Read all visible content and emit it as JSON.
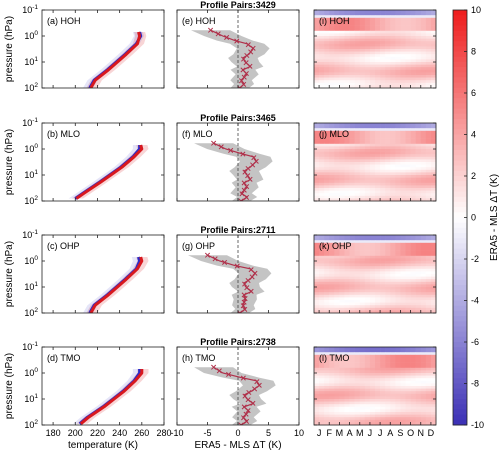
{
  "colors": {
    "era5": "#d8181e",
    "mls": "#2b2bc8",
    "spread": "#b0b0b0",
    "marker": "#b0304a",
    "cbar_low": "#3b2fb5",
    "cbar_mid": "#ffffff",
    "cbar_high": "#ee1b1b"
  },
  "pair_titles": [
    "Profile Pairs:3429",
    "Profile Pairs:3465",
    "Profile Pairs:2711",
    "Profile Pairs:2738"
  ],
  "chart_data": [
    {
      "type": "line",
      "xlabel": "temperature (K)",
      "ylabel": "pressure (hPa)",
      "xlim": [
        170,
        280
      ],
      "ylim": [
        0.1,
        100
      ],
      "y_scale": "log",
      "y_reversed": true,
      "xticks": [
        "180",
        "200",
        "220",
        "240",
        "260",
        "280"
      ],
      "yticks_base": "10",
      "yticks_exp": [
        "-1",
        "0",
        "1",
        "2"
      ],
      "series_colors": [
        "#d8181e",
        "#2b2bc8"
      ],
      "panels": [
        {
          "label": "(a) HOH",
          "pressure": [
            100,
            50,
            20,
            10,
            5,
            2,
            1,
            0.7
          ],
          "t_era5": [
            214,
            218,
            230,
            238,
            246,
            256,
            258,
            257
          ],
          "t_mls": [
            213,
            217,
            229,
            237,
            245,
            255,
            259,
            258
          ]
        },
        {
          "label": "(b) MLO",
          "pressure": [
            80,
            50,
            20,
            10,
            5,
            2,
            1,
            0.7
          ],
          "t_era5": [
            201,
            208,
            222,
            232,
            242,
            253,
            260,
            259
          ],
          "t_mls": [
            200,
            207,
            221,
            231,
            241,
            252,
            258,
            258
          ]
        },
        {
          "label": "(c) OHP",
          "pressure": [
            100,
            50,
            20,
            10,
            5,
            2,
            1,
            0.7
          ],
          "t_era5": [
            214,
            218,
            230,
            238,
            246,
            256,
            260,
            259
          ],
          "t_mls": [
            213,
            217,
            229,
            237,
            245,
            255,
            258,
            257
          ]
        },
        {
          "label": "(d) TMO",
          "pressure": [
            90,
            50,
            20,
            10,
            5,
            2,
            1,
            0.7
          ],
          "t_era5": [
            205,
            212,
            226,
            235,
            244,
            254,
            260,
            260
          ],
          "t_mls": [
            204,
            211,
            225,
            234,
            243,
            253,
            258,
            258
          ]
        }
      ]
    },
    {
      "type": "line",
      "xlabel": "ERA5 - MLS ΔT (K)",
      "xlim": [
        -10,
        10
      ],
      "ylim": [
        0.1,
        100
      ],
      "y_scale": "log",
      "xticks": [
        "-10",
        "-5",
        "0",
        "5",
        "10"
      ],
      "panels": [
        {
          "label": "(e) HOH",
          "pressure": [
            0.6,
            1,
            1.5,
            2,
            3,
            5,
            7,
            10,
            15,
            20,
            30,
            50,
            70,
            100
          ],
          "mean": [
            -4.5,
            -2.5,
            -0.5,
            1.5,
            2.5,
            1.8,
            0.8,
            1.2,
            2.0,
            0.8,
            1.5,
            0.5,
            1.0,
            0.3
          ]
        },
        {
          "label": "(f) MLO",
          "pressure": [
            0.6,
            1,
            1.5,
            2,
            3,
            5,
            7,
            10,
            15,
            20,
            30,
            50,
            70,
            100
          ],
          "mean": [
            -4.0,
            -2.0,
            0.5,
            2.5,
            3.0,
            2.0,
            1.0,
            1.5,
            2.0,
            1.0,
            1.5,
            0.5,
            1.5,
            0.5
          ]
        },
        {
          "label": "(g) OHP",
          "pressure": [
            0.6,
            1,
            1.5,
            2,
            3,
            5,
            7,
            10,
            15,
            20,
            30,
            50,
            70,
            100
          ],
          "mean": [
            -5.0,
            -3.0,
            -0.5,
            2.0,
            2.8,
            2.0,
            1.0,
            1.3,
            2.2,
            1.0,
            1.2,
            0.8,
            1.2,
            0.3
          ]
        },
        {
          "label": "(h) TMO",
          "pressure": [
            0.6,
            1,
            1.5,
            2,
            3,
            5,
            7,
            10,
            15,
            20,
            30,
            50,
            70,
            100
          ],
          "mean": [
            -4.0,
            -2.5,
            0.5,
            3.0,
            3.5,
            2.2,
            1.0,
            1.5,
            2.5,
            1.0,
            1.8,
            0.8,
            1.5,
            0.5
          ]
        }
      ]
    },
    {
      "type": "heatmap",
      "xticks": [
        "J",
        "F",
        "M",
        "A",
        "M",
        "J",
        "J",
        "A",
        "S",
        "O",
        "N",
        "D"
      ],
      "panels": [
        {
          "label": "(i) HOH"
        },
        {
          "label": "(j) MLO"
        },
        {
          "label": "(k) OHP"
        },
        {
          "label": "(l) TMO"
        }
      ]
    },
    {
      "type": "colorbar",
      "label": "ERA5 - MLS ΔT (K)",
      "range": [
        -10,
        10
      ],
      "ticks": [
        "10",
        "8",
        "6",
        "4",
        "2",
        "0",
        "-2",
        "-4",
        "-6",
        "-8",
        "-10"
      ]
    }
  ]
}
